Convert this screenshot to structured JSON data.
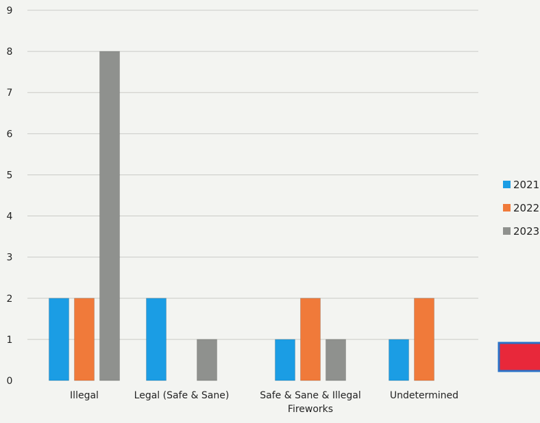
{
  "chart_data": {
    "type": "bar",
    "title": "",
    "xlabel": "",
    "ylabel": "",
    "ylim": [
      0,
      9
    ],
    "yticks": [
      0,
      1,
      2,
      3,
      4,
      5,
      6,
      7,
      8,
      9
    ],
    "grid": "horizontal",
    "legend_position": "right",
    "categories": [
      [
        "Illegal"
      ],
      [
        "Legal (Safe & Sane)"
      ],
      [
        "Safe & Sane & Illegal",
        "Fireworks"
      ],
      [
        "Undetermined"
      ]
    ],
    "series": [
      {
        "name": "2021",
        "color": "#1b9de4",
        "values": [
          2,
          2,
          1,
          1
        ]
      },
      {
        "name": "2022",
        "color": "#f07a3a",
        "values": [
          2,
          0,
          2,
          2
        ]
      },
      {
        "name": "2023",
        "color": "#8f918e",
        "values": [
          8,
          1,
          1,
          0
        ]
      }
    ],
    "decor": {
      "red_box_color": "#e8283a",
      "red_box_border": "#2a72c8"
    }
  }
}
